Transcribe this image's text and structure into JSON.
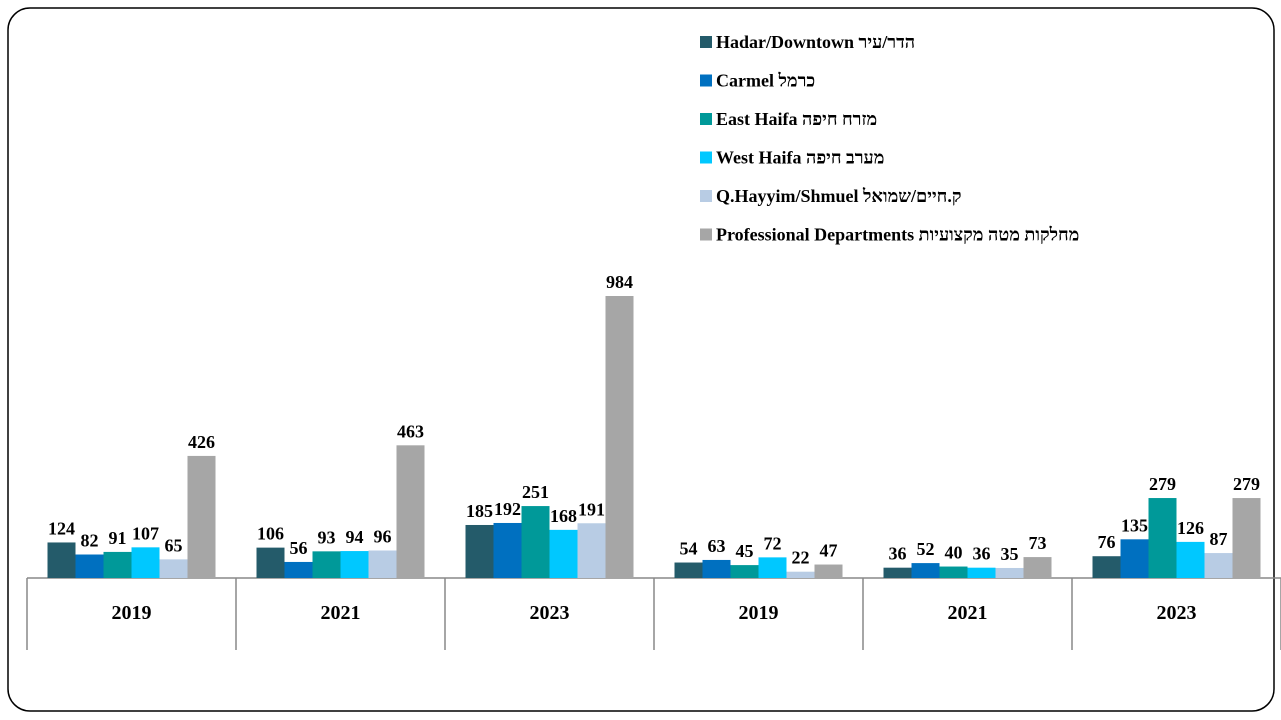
{
  "chart_data": {
    "type": "bar",
    "categories": [
      "2019",
      "2021",
      "2023",
      "2019",
      "2021",
      "2023"
    ],
    "series": [
      {
        "name": "Hadar/Downtown הדר/עיר",
        "color": "#245b6a",
        "values": [
          124,
          106,
          185,
          54,
          36,
          76
        ]
      },
      {
        "name": "Carmel כרמל",
        "color": "#0070c0",
        "values": [
          82,
          56,
          192,
          63,
          52,
          135
        ]
      },
      {
        "name": "East Haifa מזרח חיפה",
        "color": "#009999",
        "values": [
          91,
          93,
          251,
          45,
          40,
          279
        ]
      },
      {
        "name": "West Haifa מערב חיפה",
        "color": "#00c8ff",
        "values": [
          107,
          94,
          168,
          72,
          36,
          126
        ]
      },
      {
        "name": "Q.Hayyim/Shmuel ק.חיים/שמואל",
        "color": "#b8cce4",
        "values": [
          65,
          96,
          191,
          22,
          35,
          87
        ]
      },
      {
        "name": "Professional Departments מחלקות מטה מקצועיות",
        "color": "#a6a6a6",
        "values": [
          426,
          463,
          984,
          47,
          73,
          279
        ]
      }
    ],
    "legend": "top-right"
  }
}
